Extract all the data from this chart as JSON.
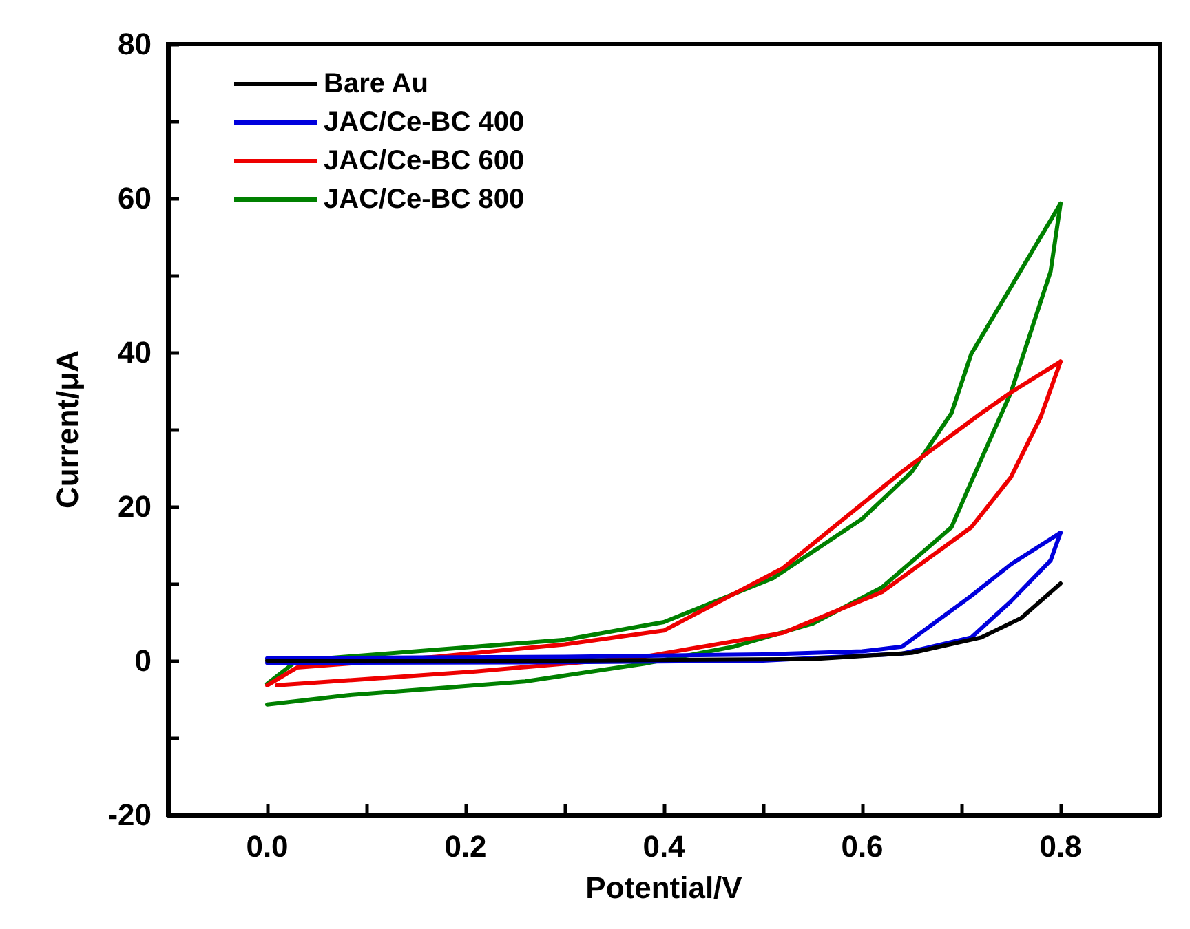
{
  "chart_data": {
    "type": "line",
    "xlabel": "Potential/V",
    "ylabel": "Current/μA",
    "xlim": [
      -0.1,
      0.9
    ],
    "ylim": [
      -20,
      80
    ],
    "xticks": [
      {
        "value": 0,
        "label": "0.0"
      },
      {
        "value": 0.1,
        "label": null
      },
      {
        "value": 0.2,
        "label": "0.2"
      },
      {
        "value": 0.3,
        "label": null
      },
      {
        "value": 0.4,
        "label": "0.4"
      },
      {
        "value": 0.5,
        "label": null
      },
      {
        "value": 0.6,
        "label": "0.6"
      },
      {
        "value": 0.7,
        "label": null
      },
      {
        "value": 0.8,
        "label": "0.8"
      }
    ],
    "yticks": [
      -20,
      {
        "value": -10,
        "label": null
      },
      0,
      {
        "value": 10,
        "label": null
      },
      20,
      {
        "value": 30,
        "label": null
      },
      40,
      {
        "value": 50,
        "label": null
      },
      60,
      {
        "value": 70,
        "label": null
      },
      80
    ],
    "grid": false,
    "legend": "top left",
    "marker": "none",
    "line_style": "solid",
    "series": [
      {
        "name": "Bare Au",
        "color": "#000000",
        "x": [
          0,
          0.3,
          0.55,
          0.65,
          0.72,
          0.76,
          0.8
        ],
        "values": [
          0,
          0,
          0.2,
          1,
          3,
          5.5,
          10
        ]
      },
      {
        "name": "JAC/Ce-BC 400",
        "color": "#0000dd",
        "x": [
          0,
          0.3,
          0.5,
          0.6,
          0.64,
          0.71,
          0.75,
          0.8
        ],
        "values": [
          0.3,
          0.5,
          0.8,
          1.2,
          1.8,
          8.4,
          12.5,
          16.6
        ]
      },
      {
        "color": "#0000dd",
        "x": [
          0,
          0.3,
          0.5,
          0.64,
          0.71,
          0.75,
          0.79,
          0.8
        ],
        "values": [
          -0.3,
          -0.2,
          0,
          0.9,
          3,
          7.7,
          13,
          16.6
        ]
      },
      {
        "name": "JAC/Ce-BC 600",
        "color": "#ee0000",
        "x": [
          0,
          0.03,
          0.17,
          0.3,
          0.4,
          0.52,
          0.64,
          0.72,
          0.75,
          0.8
        ],
        "values": [
          -3.2,
          -0.9,
          0.5,
          2.1,
          3.9,
          12,
          24.5,
          32.1,
          34.8,
          38.8
        ]
      },
      {
        "color": "#ee0000",
        "x": [
          0.01,
          0.21,
          0.38,
          0.52,
          0.62,
          0.71,
          0.75,
          0.78,
          0.8
        ],
        "values": [
          -3.2,
          -1.4,
          0.5,
          3.6,
          8.9,
          17.3,
          23.8,
          31.6,
          38.8
        ]
      },
      {
        "name": "JAC/Ce-BC 800",
        "color": "#008000",
        "x": [
          0,
          0.03,
          0.17,
          0.3,
          0.4,
          0.51,
          0.6,
          0.65,
          0.69,
          0.71,
          0.8
        ],
        "values": [
          -3,
          0,
          1.4,
          2.7,
          5,
          10.7,
          18.4,
          24.5,
          32.1,
          39.8,
          59.3
        ]
      },
      {
        "color": "#008000",
        "x": [
          0,
          0.08,
          0.26,
          0.38,
          0.47,
          0.55,
          0.62,
          0.69,
          0.71,
          0.75,
          0.79,
          0.8
        ],
        "values": [
          -5.7,
          -4.5,
          -2.7,
          -0.4,
          1.8,
          4.8,
          9.5,
          17.3,
          23.2,
          34.8,
          50.5,
          59.3
        ]
      }
    ]
  }
}
